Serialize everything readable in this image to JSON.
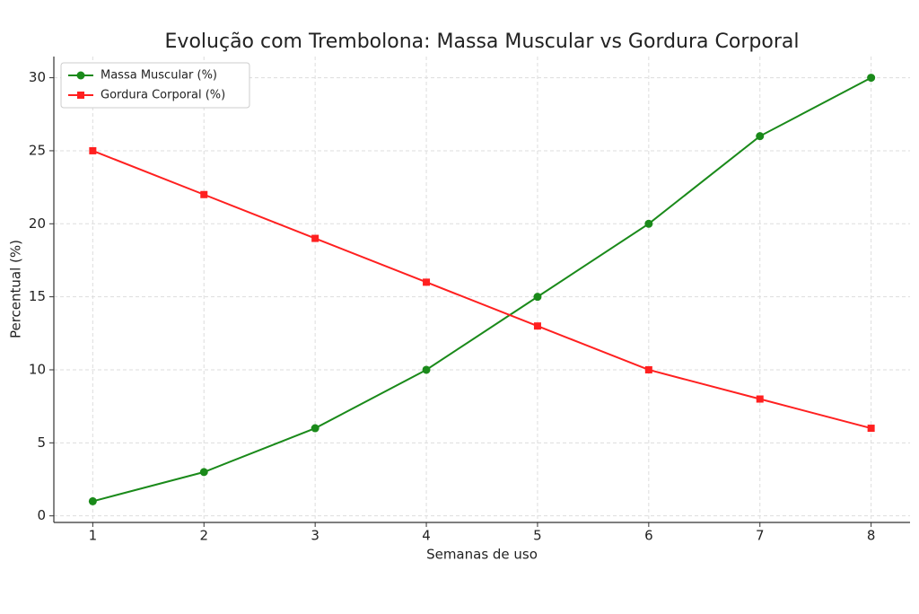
{
  "chart_data": {
    "type": "line",
    "title": "Evolução com Trembolona: Massa Muscular vs Gordura Corporal",
    "x_label": "Semanas de uso",
    "y_label": "Percentual (%)",
    "x": [
      1,
      2,
      3,
      4,
      5,
      6,
      7,
      8
    ],
    "series": [
      {
        "name": "Massa Muscular (%)",
        "color": "#1a8a1a",
        "marker": "circle",
        "values": [
          1,
          3,
          6,
          10,
          15,
          20,
          26,
          30
        ]
      },
      {
        "name": "Gordura Corporal (%)",
        "color": "#ff2020",
        "marker": "square",
        "values": [
          25,
          22,
          19,
          16,
          13,
          10,
          8,
          6
        ]
      }
    ],
    "xlim": [
      0.65,
      8.35
    ],
    "xticks": [
      1,
      2,
      3,
      4,
      5,
      6,
      7,
      8
    ],
    "ylim": [
      -0.45,
      31.45
    ],
    "yticks": [
      0,
      5,
      10,
      15,
      20,
      25,
      30
    ],
    "grid": true,
    "legend": "upper-left"
  }
}
